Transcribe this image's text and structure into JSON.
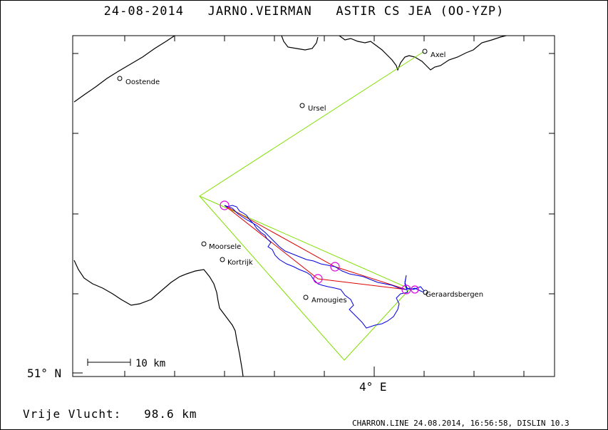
{
  "title": "24-08-2014   JARNO.VEIRMAN   ASTIR CS JEA (OO-YZP)",
  "axes": {
    "lat_label": "51° N",
    "lon_label": "4° E"
  },
  "scale": {
    "label": "10 km"
  },
  "distance": "Vrije Vlucht:   98.6 km",
  "footer": "CHARRON.LINE 24.08.2014, 16:56:58, DISLIN 10.3",
  "cities": [
    {
      "name": "Oostende"
    },
    {
      "name": "Ursel"
    },
    {
      "name": "Axel"
    },
    {
      "name": "Moorsele"
    },
    {
      "name": "Kortrijk"
    },
    {
      "name": "Amougies"
    },
    {
      "name": "Geraardsbergen"
    }
  ],
  "colors": {
    "task": "#80e000",
    "route": "#e00000",
    "track": "#0000e0",
    "turnpoint": "#e000e0",
    "border": "#000000"
  }
}
